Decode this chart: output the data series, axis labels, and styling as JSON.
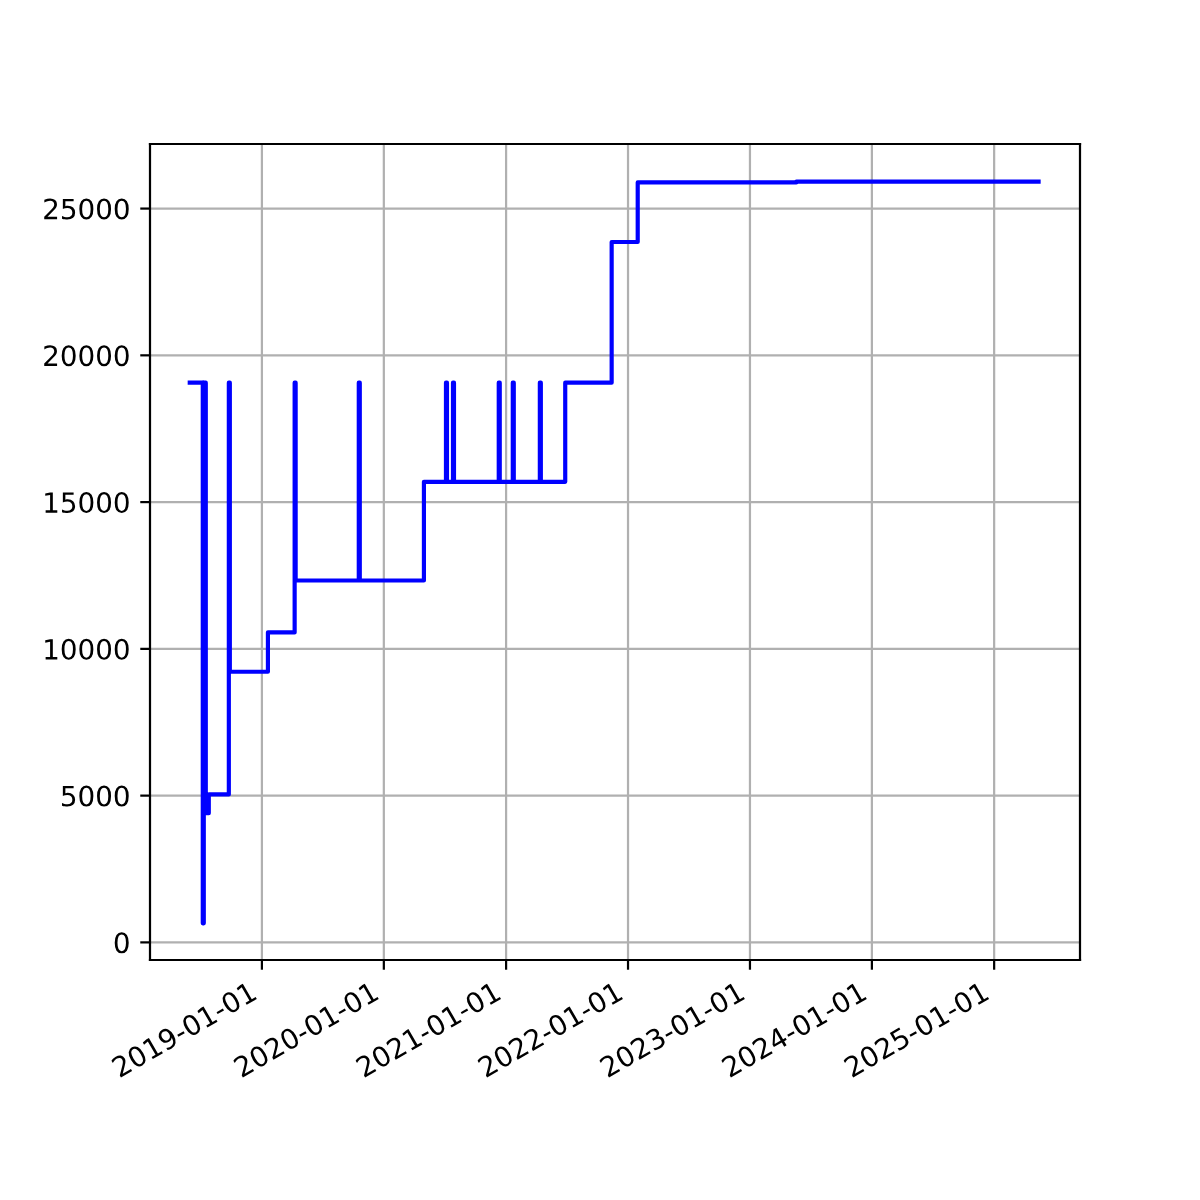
{
  "chart_data": {
    "type": "step",
    "x": [
      "2018-05-30",
      "2018-07-08",
      "2018-07-11",
      "2018-07-17",
      "2018-07-26",
      "2018-09-24",
      "2018-09-27",
      "2019-01-19",
      "2019-04-09",
      "2019-04-12",
      "2019-10-18",
      "2019-10-21",
      "2020-04-30",
      "2020-07-05",
      "2020-07-08",
      "2020-07-26",
      "2020-07-29",
      "2020-12-10",
      "2020-12-13",
      "2021-01-21",
      "2021-01-24",
      "2021-04-12",
      "2021-04-15",
      "2021-06-27",
      "2021-11-13",
      "2022-01-30",
      "2023-05-20",
      "2025-05-14"
    ],
    "series": [
      {
        "color": "#0000ff",
        "values": [
          19070,
          650,
          19070,
          4400,
          5040,
          19070,
          9220,
          10560,
          19070,
          12330,
          19070,
          12330,
          15690,
          19070,
          15690,
          19070,
          15690,
          19070,
          15690,
          19070,
          15690,
          19070,
          15690,
          19070,
          23860,
          25890,
          25920,
          25920
        ]
      }
    ],
    "xlim": [
      "2018-01-31",
      "2025-09-15"
    ],
    "xticks": [
      {
        "value": "2019-01-01",
        "label": "2019-01-01"
      },
      {
        "value": "2020-01-01",
        "label": "2020-01-01"
      },
      {
        "value": "2021-01-01",
        "label": "2021-01-01"
      },
      {
        "value": "2022-01-01",
        "label": "2022-01-01"
      },
      {
        "value": "2023-01-01",
        "label": "2023-01-01"
      },
      {
        "value": "2024-01-01",
        "label": "2024-01-01"
      },
      {
        "value": "2025-01-01",
        "label": "2025-01-01"
      }
    ],
    "ylim": [
      -600,
      27200
    ],
    "yticks": [
      0,
      5000,
      10000,
      15000,
      20000,
      25000
    ],
    "grid": true,
    "line_style": "solid"
  }
}
